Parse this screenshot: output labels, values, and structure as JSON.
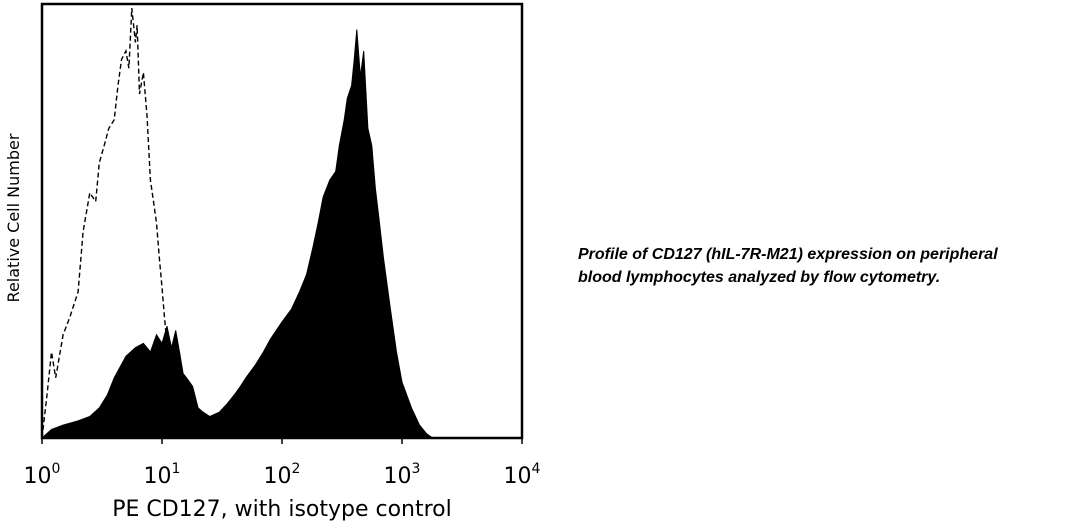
{
  "chart_data": {
    "type": "area",
    "xscale": "log",
    "xlim": [
      1,
      10000
    ],
    "ylim": [
      0,
      1
    ],
    "grid": false,
    "legend": "none",
    "xlabel": "PE CD127, with isotype control",
    "ylabel": "Relative Cell Number",
    "x_ticks": [
      {
        "base": "10",
        "exp": "0",
        "value": 1
      },
      {
        "base": "10",
        "exp": "1",
        "value": 10
      },
      {
        "base": "10",
        "exp": "2",
        "value": 100
      },
      {
        "base": "10",
        "exp": "3",
        "value": 1000
      },
      {
        "base": "10",
        "exp": "4",
        "value": 10000
      }
    ],
    "series": [
      {
        "style": "filled",
        "color": "#000000",
        "x": [
          1.0,
          1.2,
          1.5,
          2.0,
          2.5,
          3.0,
          3.5,
          4.0,
          5.0,
          6.0,
          7.0,
          8.0,
          9.0,
          10.0,
          11.0,
          12.0,
          13.0,
          14.0,
          15.0,
          16.0,
          18.0,
          20.0,
          22.0,
          25.0,
          30.0,
          35.0,
          40.0,
          45.0,
          50.0,
          60.0,
          70.0,
          80.0,
          100.0,
          120.0,
          140.0,
          160.0,
          180.0,
          200.0,
          220.0,
          250.0,
          280.0,
          300.0,
          330.0,
          350.0,
          380.0,
          400.0,
          420.0,
          450.0,
          480.0,
          520.0,
          560.0,
          600.0,
          650.0,
          700.0,
          800.0,
          900.0,
          1000.0,
          1200.0,
          1400.0,
          1600.0,
          1800.0,
          2000.0,
          3000.0,
          5000.0,
          10000.0
        ],
        "y": [
          0.0,
          0.02,
          0.03,
          0.04,
          0.05,
          0.07,
          0.1,
          0.14,
          0.19,
          0.21,
          0.22,
          0.2,
          0.24,
          0.22,
          0.26,
          0.21,
          0.25,
          0.2,
          0.15,
          0.14,
          0.12,
          0.07,
          0.06,
          0.05,
          0.06,
          0.08,
          0.1,
          0.12,
          0.14,
          0.17,
          0.2,
          0.23,
          0.27,
          0.3,
          0.34,
          0.38,
          0.44,
          0.5,
          0.56,
          0.6,
          0.62,
          0.68,
          0.74,
          0.79,
          0.82,
          0.88,
          0.95,
          0.84,
          0.9,
          0.72,
          0.68,
          0.58,
          0.5,
          0.42,
          0.3,
          0.2,
          0.13,
          0.07,
          0.03,
          0.01,
          0.0,
          0.0,
          0.0,
          0.0,
          0.0
        ]
      },
      {
        "style": "dashed",
        "color": "#000000",
        "x": [
          1.0,
          1.1,
          1.2,
          1.3,
          1.5,
          1.7,
          2.0,
          2.2,
          2.5,
          2.8,
          3.0,
          3.3,
          3.6,
          4.0,
          4.3,
          4.6,
          5.0,
          5.3,
          5.6,
          6.0,
          6.2,
          6.5,
          7.0,
          7.5,
          8.0,
          8.5,
          9.0,
          9.5,
          10.0,
          10.5,
          11.0,
          11.5,
          12.0,
          13.0
        ],
        "y": [
          0.0,
          0.1,
          0.2,
          0.14,
          0.24,
          0.28,
          0.34,
          0.48,
          0.57,
          0.55,
          0.64,
          0.68,
          0.72,
          0.74,
          0.82,
          0.88,
          0.9,
          0.86,
          1.0,
          0.92,
          0.96,
          0.8,
          0.85,
          0.75,
          0.6,
          0.55,
          0.5,
          0.42,
          0.35,
          0.28,
          0.22,
          0.1,
          0.05,
          0.0
        ]
      }
    ]
  },
  "caption": {
    "line1": "Profile of CD127 (hIL-7R-M21) expression on peripheral",
    "line2": "blood lymphocytes analyzed by flow cytometry."
  }
}
